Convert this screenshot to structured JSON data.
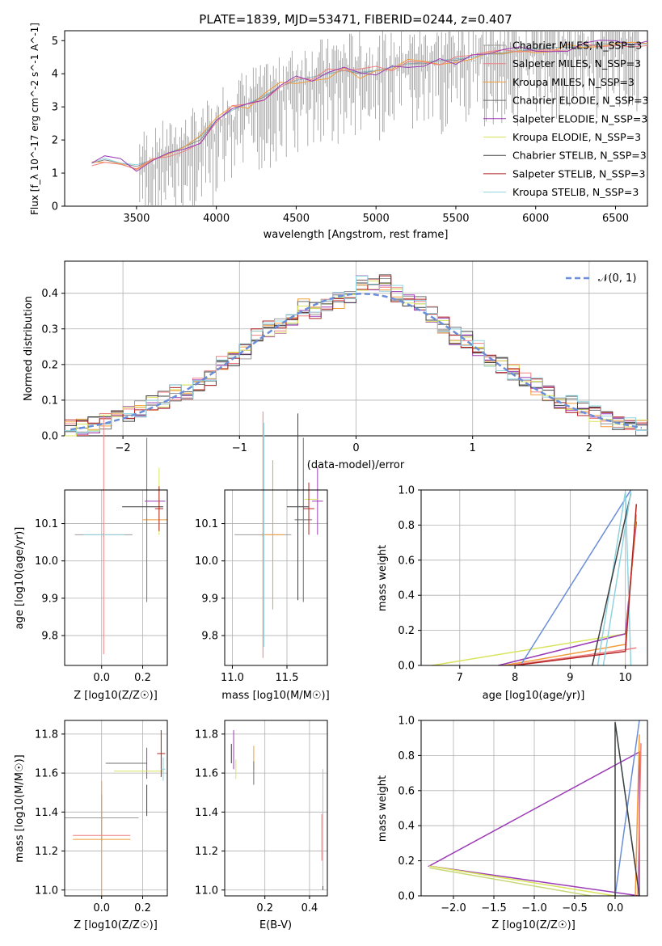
{
  "title": "PLATE=1839, MJD=53471, FIBERID=0244, z=0.407",
  "colors": {
    "Chabrier MILES": "#9a9a9a",
    "Salpeter MILES": "#f08080",
    "Kroupa MILES": "#f39c3a",
    "Chabrier ELODIE": "#707070",
    "Salpeter ELODIE": "#9b3bb5",
    "Kroupa ELODIE": "#d9e45c",
    "Chabrier STELIB": "#404040",
    "Salpeter STELIB": "#b22222",
    "Kroupa STELIB": "#8fd3e0"
  },
  "spectrum": {
    "xlabel": "wavelength [Angstrom, rest frame]",
    "ylabel": "Flux [f_λ 10^-17 erg cm^-2 s^-1 A^-1]",
    "xticks": [
      "3500",
      "4000",
      "4500",
      "5000",
      "5500",
      "6000",
      "6500"
    ],
    "yticks": [
      "0",
      "1",
      "2",
      "3",
      "4",
      "5"
    ],
    "legend": [
      "Chabrier MILES, N_SSP=3",
      "Salpeter MILES, N_SSP=3",
      "Kroupa MILES, N_SSP=3",
      "Chabrier ELODIE, N_SSP=3",
      "Salpeter ELODIE, N_SSP=3",
      "Kroupa ELODIE, N_SSP=3",
      "Chabrier STELIB, N_SSP=3",
      "Salpeter STELIB, N_SSP=3",
      "Kroupa STELIB, N_SSP=3"
    ]
  },
  "residuals": {
    "xlabel": "(data-model)/error",
    "ylabel": "Normed distribution",
    "xticks": [
      "−2",
      "−1",
      "0",
      "1",
      "2"
    ],
    "yticks": [
      "0.0",
      "0.1",
      "0.2",
      "0.3",
      "0.4"
    ],
    "legend": "𝒩(0, 1)"
  },
  "panels": {
    "age_Z": {
      "xlabel": "Z [log10(Z/Z☉)]",
      "ylabel": "age  [log10(age/yr)]",
      "xticks": [
        "0.0",
        "0.2"
      ],
      "yticks": [
        "9.8",
        "9.9",
        "10.0",
        "10.1"
      ]
    },
    "age_mass": {
      "xlabel": "mass [log10(M/M☉)]",
      "xticks": [
        "11.0",
        "11.5"
      ],
      "yticks": [
        "9.8",
        "9.9",
        "10.0",
        "10.1"
      ]
    },
    "mw_age": {
      "xlabel": "age  [log10(age/yr)]",
      "ylabel": "mass weight",
      "xticks": [
        "7",
        "8",
        "9",
        "10"
      ],
      "yticks": [
        "0.0",
        "0.2",
        "0.4",
        "0.6",
        "0.8",
        "1.0"
      ]
    },
    "mass_Z": {
      "xlabel": "Z [log10(Z/Z☉)]",
      "ylabel": "mass [log10(M/M☉)]",
      "xticks": [
        "0.0",
        "0.2"
      ],
      "yticks": [
        "11.0",
        "11.2",
        "11.4",
        "11.6",
        "11.8"
      ]
    },
    "mass_ebv": {
      "xlabel": "E(B-V)",
      "xticks": [
        "0.2",
        "0.4"
      ],
      "yticks": [
        "11.0",
        "11.2",
        "11.4",
        "11.6",
        "11.8"
      ]
    },
    "mw_Z": {
      "xlabel": "Z [log10(Z/Z☉)]",
      "ylabel": "mass weight",
      "xticks": [
        "−2.0",
        "−1.5",
        "−1.0",
        "−0.5",
        "0.0"
      ],
      "yticks": [
        "0.0",
        "0.2",
        "0.4",
        "0.6",
        "0.8",
        "1.0"
      ]
    }
  },
  "chart_data": [
    {
      "type": "line",
      "title": "PLATE=1839, MJD=53471, FIBERID=0244, z=0.407",
      "xlabel": "wavelength [Angstrom, rest frame]",
      "ylabel": "Flux [f_λ 10^-17 erg cm^-2 s^-1 A^-1]",
      "xlim": [
        3050,
        6700
      ],
      "ylim": [
        0,
        5.3
      ],
      "x": [
        3220,
        3300,
        3400,
        3500,
        3600,
        3700,
        3800,
        3900,
        4000,
        4100,
        4200,
        4300,
        4400,
        4500,
        4600,
        4700,
        4800,
        4900,
        5000,
        5100,
        5200,
        5300,
        5400,
        5500,
        5600,
        5700,
        5800,
        5900,
        6000,
        6100,
        6200,
        6300,
        6400,
        6500,
        6600,
        6700
      ],
      "series": [
        {
          "name": "Chabrier MILES, N_SSP=3",
          "values": [
            1.3,
            1.4,
            1.3,
            1.2,
            1.4,
            1.6,
            1.8,
            2.0,
            2.6,
            2.9,
            3.1,
            3.3,
            3.6,
            3.8,
            3.9,
            4.0,
            4.1,
            4.0,
            4.1,
            4.2,
            4.3,
            4.3,
            4.4,
            4.4,
            4.5,
            4.6,
            4.6,
            4.7,
            4.7,
            4.8,
            4.8,
            4.8,
            4.9,
            4.9,
            4.9,
            4.9
          ]
        },
        {
          "name": "Kroupa STELIB, N_SSP=3",
          "values": [
            1.3,
            1.45,
            1.3,
            1.25,
            1.4,
            1.6,
            1.8,
            2.1,
            2.6,
            2.9,
            3.1,
            3.35,
            3.6,
            3.8,
            3.9,
            4.0,
            4.1,
            4.05,
            4.1,
            4.2,
            4.3,
            4.35,
            4.4,
            4.45,
            4.5,
            4.6,
            4.65,
            4.7,
            4.75,
            4.8,
            4.8,
            4.85,
            4.9,
            4.9,
            4.9,
            4.9
          ]
        }
      ]
    },
    {
      "type": "line",
      "xlabel": "(data-model)/error",
      "ylabel": "Normed distribution",
      "xlim": [
        -2.5,
        2.5
      ],
      "ylim": [
        0,
        0.49
      ],
      "x": [
        -2.5,
        -2.4,
        -2.3,
        -2.2,
        -2.1,
        -2.0,
        -1.9,
        -1.8,
        -1.7,
        -1.6,
        -1.5,
        -1.4,
        -1.3,
        -1.2,
        -1.1,
        -1.0,
        -0.9,
        -0.8,
        -0.7,
        -0.6,
        -0.5,
        -0.4,
        -0.3,
        -0.2,
        -0.1,
        0.0,
        0.1,
        0.2,
        0.3,
        0.4,
        0.5,
        0.6,
        0.7,
        0.8,
        0.9,
        1.0,
        1.1,
        1.2,
        1.3,
        1.4,
        1.5,
        1.6,
        1.7,
        1.8,
        1.9,
        2.0,
        2.1,
        2.2,
        2.3,
        2.4
      ],
      "series": [
        {
          "name": "histogram",
          "values": [
            0.02,
            0.025,
            0.03,
            0.04,
            0.05,
            0.06,
            0.075,
            0.09,
            0.1,
            0.12,
            0.12,
            0.14,
            0.16,
            0.2,
            0.22,
            0.24,
            0.28,
            0.3,
            0.31,
            0.33,
            0.36,
            0.35,
            0.36,
            0.38,
            0.39,
            0.43,
            0.42,
            0.43,
            0.4,
            0.38,
            0.37,
            0.34,
            0.31,
            0.28,
            0.27,
            0.25,
            0.22,
            0.2,
            0.18,
            0.16,
            0.14,
            0.12,
            0.1,
            0.09,
            0.08,
            0.06,
            0.05,
            0.04,
            0.03,
            0.025
          ]
        },
        {
          "name": "𝒩(0, 1)",
          "values": [
            0.0175,
            0.0224,
            0.0283,
            0.0355,
            0.044,
            0.054,
            0.0656,
            0.079,
            0.094,
            0.1109,
            0.1295,
            0.1497,
            0.1714,
            0.1942,
            0.2179,
            0.242,
            0.2661,
            0.2897,
            0.3123,
            0.3332,
            0.3521,
            0.3683,
            0.3814,
            0.391,
            0.397,
            0.3989,
            0.397,
            0.391,
            0.3814,
            0.3683,
            0.3521,
            0.3332,
            0.3123,
            0.2897,
            0.2661,
            0.242,
            0.2179,
            0.1942,
            0.1714,
            0.1497,
            0.1295,
            0.1109,
            0.094,
            0.079,
            0.0656,
            0.054,
            0.044,
            0.0355,
            0.0283,
            0.0224
          ]
        }
      ]
    },
    {
      "type": "scatter",
      "xlabel": "Z [log10(Z/Z☉)]",
      "ylabel": "age  [log10(age/yr)]",
      "xlim": [
        -0.18,
        0.32
      ],
      "ylim": [
        9.72,
        10.19
      ],
      "series": [
        {
          "name": "Kroupa STELIB, N_SSP=3",
          "values": [
            [
              0.01,
              10.07
            ]
          ]
        },
        {
          "name": "Salpeter ELODIE, N_SSP=3",
          "values": [
            [
              0.22,
              10.11
            ]
          ]
        },
        {
          "name": "Salpeter MILES, N_SSP=3",
          "values": [
            [
              0.28,
              10.16
            ]
          ]
        }
      ]
    },
    {
      "type": "scatter",
      "xlabel": "mass [log10(M/M☉)]",
      "xlim": [
        10.93,
        11.87
      ],
      "ylim": [
        9.72,
        10.19
      ],
      "series": [
        {
          "name": "Kroupa STELIB, N_SSP=3",
          "values": [
            [
              11.28,
              10.07
            ]
          ]
        },
        {
          "name": "Salpeter ELODIE, N_SSP=3",
          "values": [
            [
              11.65,
              10.11
            ]
          ]
        },
        {
          "name": "Salpeter MILES, N_SSP=3",
          "values": [
            [
              11.78,
              10.16
            ]
          ]
        }
      ]
    },
    {
      "type": "line",
      "xlabel": "age  [log10(age/yr)]",
      "ylabel": "mass weight",
      "xlim": [
        6.3,
        10.4
      ],
      "ylim": [
        0,
        1
      ],
      "series": [
        {
          "name": "Kroupa ELODIE, N_SSP=3",
          "values": [
            [
              6.5,
              0.0
            ],
            [
              10.0,
              0.18
            ],
            [
              10.2,
              0.82
            ]
          ]
        },
        {
          "name": "Salpeter ELODIE, N_SSP=3",
          "values": [
            [
              7.8,
              0.0
            ],
            [
              10.0,
              0.18
            ],
            [
              10.2,
              0.82
            ]
          ]
        },
        {
          "name": "blue",
          "values": [
            [
              8.1,
              0.0
            ],
            [
              10.1,
              1.0
            ]
          ]
        }
      ]
    },
    {
      "type": "scatter",
      "xlabel": "Z [log10(Z/Z☉)]",
      "ylabel": "mass [log10(M/M☉)]",
      "xlim": [
        -0.18,
        0.32
      ],
      "ylim": [
        10.97,
        11.87
      ],
      "series": [
        {
          "name": "Salpeter STELIB, N_SSP=3",
          "values": [
            [
              0.0,
              11.37
            ]
          ]
        },
        {
          "name": "Chabrier STELIB, N_SSP=3",
          "values": [
            [
              0.0,
              11.28
            ]
          ]
        },
        {
          "name": "Salpeter ELODIE, N_SSP=3",
          "values": [
            [
              0.22,
              11.65
            ]
          ]
        }
      ]
    },
    {
      "type": "scatter",
      "xlabel": "E(B-V)",
      "xlim": [
        0.02,
        0.48
      ],
      "ylim": [
        10.97,
        11.87
      ],
      "series": [
        {
          "name": "Salpeter STELIB, N_SSP=3",
          "values": [
            [
              0.46,
              11.4
            ]
          ]
        },
        {
          "name": "Salpeter ELODIE, N_SSP=3",
          "values": [
            [
              0.15,
              11.68
            ]
          ]
        },
        {
          "name": "Salpeter MILES, N_SSP=3",
          "values": [
            [
              0.06,
              11.72
            ]
          ]
        }
      ]
    },
    {
      "type": "line",
      "xlabel": "Z [log10(Z/Z☉)]",
      "ylabel": "mass weight",
      "xlim": [
        -2.4,
        0.4
      ],
      "ylim": [
        0,
        1
      ],
      "series": [
        {
          "name": "Salpeter ELODIE, N_SSP=3",
          "values": [
            [
              0.3,
              0.0
            ],
            [
              0.3,
              0.82
            ],
            [
              -2.3,
              0.17
            ],
            [
              0.0,
              0.0
            ]
          ]
        },
        {
          "name": "Kroupa ELODIE, N_SSP=3",
          "values": [
            [
              -2.3,
              0.17
            ],
            [
              0.0,
              0.0
            ]
          ]
        },
        {
          "name": "blue",
          "values": [
            [
              0.0,
              0.0
            ],
            [
              0.3,
              1.0
            ]
          ]
        }
      ]
    }
  ]
}
